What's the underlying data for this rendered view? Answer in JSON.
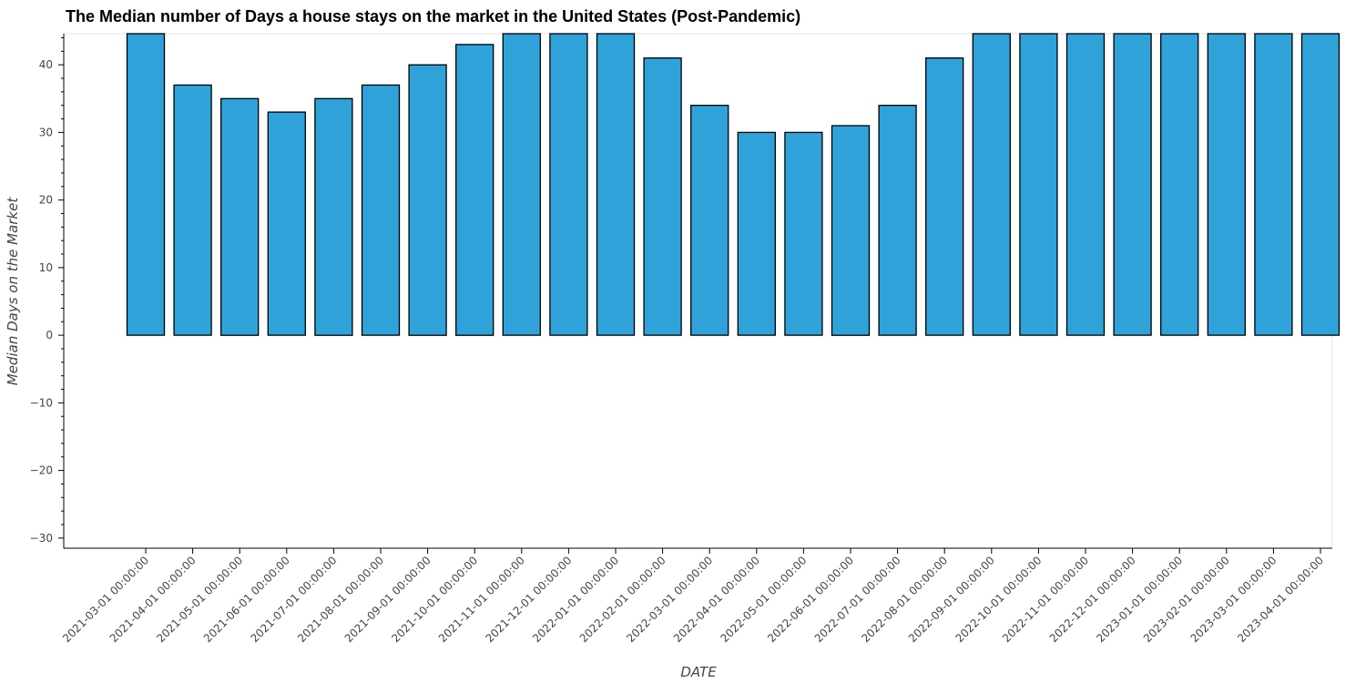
{
  "chart_data": {
    "type": "bar",
    "title": "The Median number of Days a house stays on the market in the United States (Post-Pandemic)",
    "xlabel": "DATE",
    "ylabel": "Median Days on the Market",
    "categories": [
      "2021-03-01 00:00:00",
      "2021-04-01 00:00:00",
      "2021-05-01 00:00:00",
      "2021-06-01 00:00:00",
      "2021-07-01 00:00:00",
      "2021-08-01 00:00:00",
      "2021-09-01 00:00:00",
      "2021-10-01 00:00:00",
      "2021-11-01 00:00:00",
      "2021-12-01 00:00:00",
      "2022-01-01 00:00:00",
      "2022-02-01 00:00:00",
      "2022-03-01 00:00:00",
      "2022-04-01 00:00:00",
      "2022-05-01 00:00:00",
      "2022-06-01 00:00:00",
      "2022-07-01 00:00:00",
      "2022-08-01 00:00:00",
      "2022-09-01 00:00:00",
      "2022-10-01 00:00:00",
      "2022-11-01 00:00:00",
      "2022-12-01 00:00:00",
      "2023-01-01 00:00:00",
      "2023-02-01 00:00:00",
      "2023-03-01 00:00:00",
      "2023-04-01 00:00:00"
    ],
    "values": [
      45,
      37,
      35,
      33,
      35,
      37,
      40,
      43,
      45,
      45,
      45,
      41,
      34,
      30,
      30,
      31,
      34,
      41,
      45,
      45,
      45,
      45,
      45,
      45,
      45,
      45
    ],
    "ylim": [
      -31.5,
      44.6
    ],
    "yticks": [
      40,
      30,
      20,
      10,
      0,
      -10,
      -20,
      -30
    ],
    "ytick_labels": [
      "40",
      "30",
      "20",
      "10",
      "0",
      "−10",
      "−20",
      "−30"
    ],
    "grid": false,
    "bar_color": "#30a2da",
    "bar_edge_color": "#000000"
  }
}
